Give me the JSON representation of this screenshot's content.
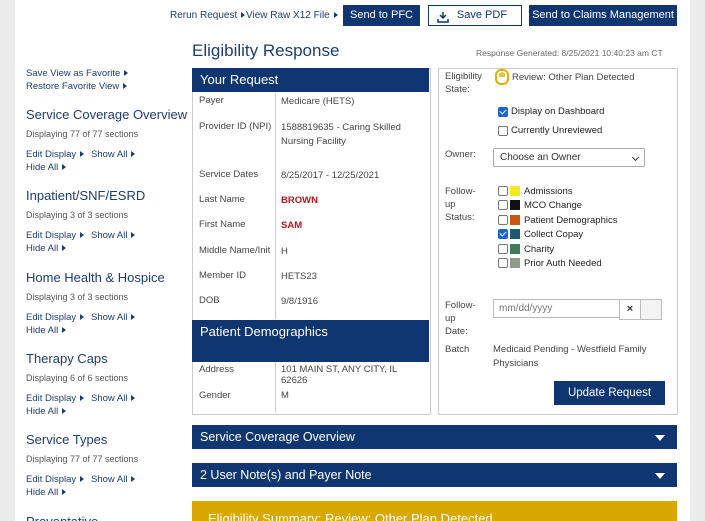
{
  "toolbar": {
    "links": [
      "Rerun Request",
      "View Raw X12 File"
    ],
    "buttons": [
      "Send to PFC",
      "Save PDF",
      "Send to Claims Management"
    ]
  },
  "header": {
    "title": "Eligibility Response",
    "generated": "Response Generated: 8/25/2021 10:40:23 am CT"
  },
  "sidebar": {
    "favorites": [
      "Save View as Favorite",
      "Restore Favorite View"
    ],
    "sections": [
      {
        "title": "Service Coverage Overview",
        "count": "Displaying 77 of 77 sections",
        "actions": [
          "Edit Display",
          "Show All",
          "Hide All"
        ]
      },
      {
        "title": "Inpatient/SNF/ESRD",
        "count": "Displaying 3 of 3 sections",
        "actions": [
          "Edit Display",
          "Show All",
          "Hide All"
        ]
      },
      {
        "title": "Home Health & Hospice",
        "count": "Displaying 3 of 3 sections",
        "actions": [
          "Edit Display",
          "Show All",
          "Hide All"
        ]
      },
      {
        "title": "Therapy Caps",
        "count": "Displaying 6 of 6 sections",
        "actions": [
          "Edit Display",
          "Show All",
          "Hide All"
        ]
      },
      {
        "title": "Service Types",
        "count": "Displaying 77 of 77 sections",
        "actions": [
          "Edit Display",
          "Show All",
          "Hide All"
        ]
      },
      {
        "title": "Preventative"
      }
    ]
  },
  "request": {
    "title": "Your Request",
    "rows": [
      {
        "label": "Payer",
        "value": "Medicare (HETS)"
      },
      {
        "label": "Provider ID (NPI)",
        "value": "1588819635 - Caring Skilled Nursing Facility"
      },
      {
        "label": "Service Dates",
        "value": "8/25/2017 - 12/25/2021"
      },
      {
        "label": "Last Name",
        "value": "BROWN",
        "highlight": true
      },
      {
        "label": "First Name",
        "value": "SAM",
        "highlight": true
      },
      {
        "label": "Middle Name/Init",
        "value": "H"
      },
      {
        "label": "Member ID",
        "value": "HETS23"
      },
      {
        "label": "DOB",
        "value": "9/8/1916"
      }
    ]
  },
  "demographics": {
    "title": "Patient Demographics",
    "rows": [
      {
        "label": "Address",
        "value": "101 MAIN ST, ANY CITY, IL 62626"
      },
      {
        "label": "Gender",
        "value": "M"
      }
    ]
  },
  "status_panel": {
    "eligibility_state_label": "Eligibility State:",
    "eligibility_state": "Review: Other Plan Detected",
    "checkboxes": [
      {
        "label": "Display on Dashboard",
        "checked": true
      },
      {
        "label": "Currently Unreviewed",
        "checked": false
      }
    ],
    "owner_label": "Owner:",
    "owner_placeholder": "Choose an Owner",
    "followup_status_label": "Follow-up Status:",
    "statuses": [
      {
        "label": "Admissions",
        "color": "#f2ea1c",
        "checked": false
      },
      {
        "label": "MCO Change",
        "color": "#111111",
        "checked": false
      },
      {
        "label": "Patient Demographics",
        "color": "#c8580f",
        "checked": false
      },
      {
        "label": "Collect Copay",
        "color": "#1f5a6e",
        "checked": true
      },
      {
        "label": "Charity",
        "color": "#3f7a5a",
        "checked": false
      },
      {
        "label": "Prior Auth Needed",
        "color": "#8f9a8d",
        "checked": false
      }
    ],
    "followup_date_label": "Follow-up Date:",
    "date_placeholder": "mm/dd/yyyy",
    "batch_label": "Batch",
    "batch": "Medicaid Pending - Westfield Family Physicians",
    "button": "Update Request"
  },
  "accordions": [
    "Service Coverage Overview",
    "2 User Note(s) and Payer Note"
  ],
  "summary": "Eligibility Summary: Review: Other Plan Detected"
}
